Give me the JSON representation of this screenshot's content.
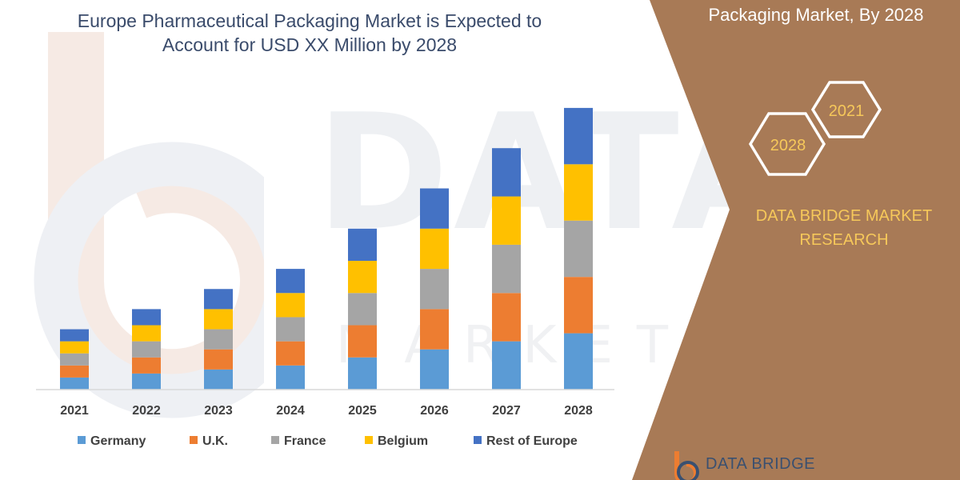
{
  "colors": {
    "panel_bg": "#a87a56",
    "germany": "#5b9bd5",
    "uk": "#ed7d31",
    "france": "#a5a5a5",
    "belgium": "#ffc000",
    "rest_of_europe": "#4472c4",
    "title_text": "#3a4b6b",
    "brand_text": "#f6c85a"
  },
  "watermark": {
    "main": "DATA BRIDGE",
    "sub": "MARKET RESEARCH"
  },
  "panel": {
    "title": "Packaging Market, By 2028",
    "hex_years": [
      "2021",
      "2028"
    ],
    "brand_line1": "DATA BRIDGE MARKET",
    "brand_line2": "RESEARCH"
  },
  "footer": {
    "logo_text": "DATA BRIDGE"
  },
  "chart_data": {
    "type": "bar",
    "stacked": true,
    "title_line1": "Europe Pharmaceutical Packaging Market is Expected to",
    "title_line2": "Account for USD XX Million by 2028",
    "categories": [
      "2021",
      "2022",
      "2023",
      "2024",
      "2025",
      "2026",
      "2027",
      "2028"
    ],
    "series": [
      {
        "name": "Germany",
        "color": "#5b9bd5",
        "values": [
          3,
          4,
          5,
          6,
          8,
          10,
          12,
          14
        ]
      },
      {
        "name": "U.K.",
        "color": "#ed7d31",
        "values": [
          3,
          4,
          5,
          6,
          8,
          10,
          12,
          14
        ]
      },
      {
        "name": "France",
        "color": "#a5a5a5",
        "values": [
          3,
          4,
          5,
          6,
          8,
          10,
          12,
          14
        ]
      },
      {
        "name": "Belgium",
        "color": "#ffc000",
        "values": [
          3,
          4,
          5,
          6,
          8,
          10,
          12,
          14
        ]
      },
      {
        "name": "Rest of Europe",
        "color": "#4472c4",
        "values": [
          3,
          4,
          5,
          6,
          8,
          10,
          12,
          14
        ]
      }
    ],
    "xlabel": "",
    "ylabel": "",
    "ylim": [
      0,
      70
    ],
    "y_axis_visible": false,
    "grid": false,
    "legend_position": "bottom"
  }
}
